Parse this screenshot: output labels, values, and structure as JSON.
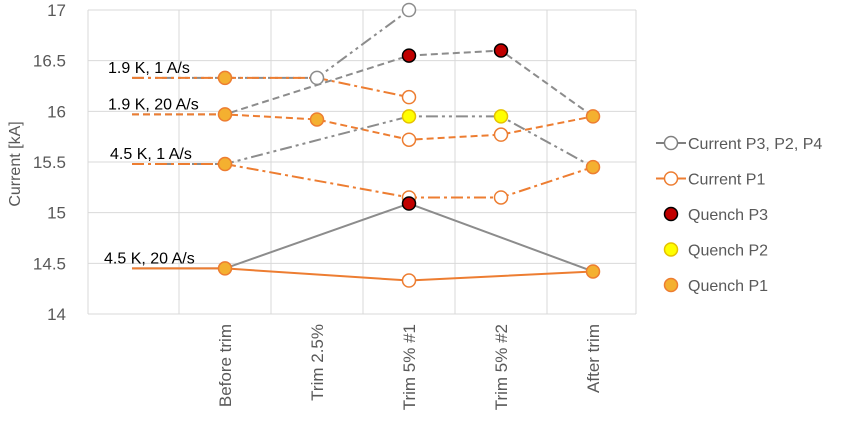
{
  "chart_data": {
    "type": "line",
    "ylabel": "Current [kA]",
    "ylim": [
      14,
      17
    ],
    "yticks": [
      14,
      14.5,
      15,
      15.5,
      16,
      16.5,
      17
    ],
    "ytick_labels": [
      "14",
      "14.5",
      "15",
      "15.5",
      "16",
      "16.5",
      "17"
    ],
    "categories": [
      "Before trim",
      "Trim 2.5%",
      "Trim 5% #1",
      "Trim 5% #2",
      "After trim"
    ],
    "grid": true,
    "legend_position": "right",
    "legend": [
      {
        "label": "Current P3, P2, P4",
        "marker": "open",
        "color": "#808080"
      },
      {
        "label": "Current P1",
        "marker": "open",
        "color": "#ed7d31"
      },
      {
        "label": "Quench P3",
        "marker": "filled",
        "color": "#c00000"
      },
      {
        "label": "Quench P2",
        "marker": "filled",
        "color": "#ffff00"
      },
      {
        "label": "Quench P1",
        "marker": "filled",
        "color": "#f4b030"
      }
    ],
    "series": [
      {
        "group": "1.9 K, 1 A/s",
        "kind": "p3p2p4",
        "values": [
          16.33,
          16.33,
          17.0,
          null,
          null
        ],
        "markers": [
          "none",
          "open",
          "open",
          "none",
          "none"
        ],
        "dash": "dashdotdot"
      },
      {
        "group": "1.9 K, 1 A/s",
        "kind": "p1",
        "values": [
          16.33,
          16.33,
          16.14,
          null,
          null
        ],
        "markers": [
          "quench_p1",
          "none",
          "open",
          "none",
          "none"
        ],
        "dash": "dashdot"
      },
      {
        "group": "1.9 K, 20 A/s",
        "kind": "p3p2p4",
        "values": [
          15.97,
          null,
          16.55,
          16.6,
          15.95
        ],
        "markers": [
          "none",
          "none",
          "quench_p3",
          "quench_p3",
          "none"
        ],
        "dash": "dash"
      },
      {
        "group": "1.9 K, 20 A/s",
        "kind": "p1",
        "values": [
          15.97,
          15.92,
          15.72,
          15.77,
          15.95
        ],
        "markers": [
          "quench_p1",
          "quench_p1",
          "open",
          "open",
          "quench_p1"
        ],
        "dash": "dash"
      },
      {
        "group": "4.5 K, 1 A/s",
        "kind": "p3p2p4",
        "values": [
          15.48,
          null,
          15.95,
          15.95,
          15.45
        ],
        "markers": [
          "none",
          "none",
          "quench_p2",
          "quench_p2",
          "none"
        ],
        "dash": "dashdotdot"
      },
      {
        "group": "4.5 K, 1 A/s",
        "kind": "p1",
        "values": [
          15.48,
          null,
          15.15,
          15.15,
          15.45
        ],
        "markers": [
          "quench_p1",
          "none",
          "open",
          "open",
          "quench_p1"
        ],
        "dash": "dashdot"
      },
      {
        "group": "4.5 K, 20 A/s",
        "kind": "p3p2p4",
        "values": [
          14.45,
          null,
          15.09,
          null,
          14.42
        ],
        "markers": [
          "none",
          "none",
          "quench_p3",
          "none",
          "none"
        ],
        "dash": "solid"
      },
      {
        "group": "4.5 K, 20 A/s",
        "kind": "p1",
        "values": [
          14.45,
          null,
          14.33,
          null,
          14.42
        ],
        "markers": [
          "quench_p1",
          "none",
          "open",
          "none",
          "quench_p1"
        ],
        "dash": "solid"
      }
    ],
    "annotations": [
      {
        "text": "1.9 K, 1 A/s",
        "y": 16.33
      },
      {
        "text": "1.9 K, 20 A/s",
        "y": 15.97
      },
      {
        "text": "4.5 K, 1 A/s",
        "y": 15.48
      },
      {
        "text": "4.5 K, 20 A/s",
        "y": 14.45
      }
    ]
  },
  "colors": {
    "gray_line": "#8c8c8c",
    "orange_line": "#ed7d31",
    "quench_p3": "#c00000",
    "quench_p2": "#ffff00",
    "quench_p1": "#f4b030",
    "grid": "#d9d9d9"
  }
}
